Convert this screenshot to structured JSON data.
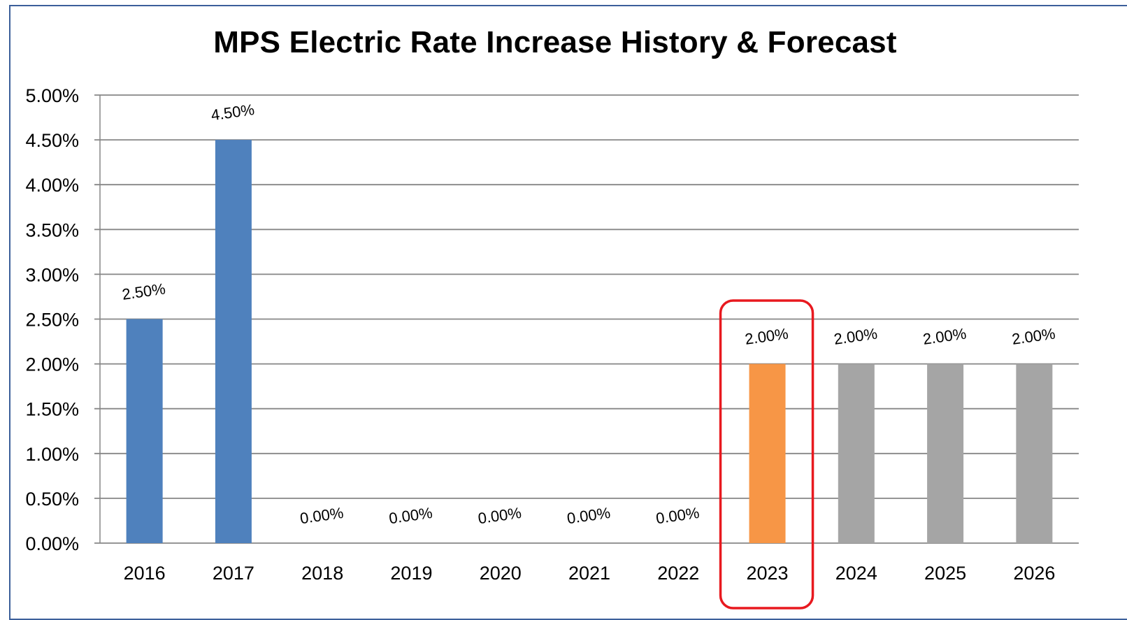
{
  "chart_data": {
    "type": "bar",
    "title": "MPS Electric Rate Increase History & Forecast",
    "categories": [
      "2016",
      "2017",
      "2018",
      "2019",
      "2020",
      "2021",
      "2022",
      "2023",
      "2024",
      "2025",
      "2026"
    ],
    "values": [
      2.5,
      4.5,
      0.0,
      0.0,
      0.0,
      0.0,
      0.0,
      2.0,
      2.0,
      2.0,
      2.0
    ],
    "data_labels": [
      "2.50%",
      "4.50%",
      "0.00%",
      "0.00%",
      "0.00%",
      "0.00%",
      "0.00%",
      "2.00%",
      "2.00%",
      "2.00%",
      "2.00%"
    ],
    "bar_colors": [
      "#4f81bd",
      "#4f81bd",
      "#4f81bd",
      "#4f81bd",
      "#4f81bd",
      "#4f81bd",
      "#4f81bd",
      "#f79646",
      "#a5a5a5",
      "#a5a5a5",
      "#a5a5a5"
    ],
    "ylim": [
      0,
      5
    ],
    "y_ticks": [
      0,
      0.5,
      1,
      1.5,
      2,
      2.5,
      3,
      3.5,
      4,
      4.5,
      5
    ],
    "y_tick_labels": [
      "0.00%",
      "0.50%",
      "1.00%",
      "1.50%",
      "2.00%",
      "2.50%",
      "3.00%",
      "3.50%",
      "4.00%",
      "4.50%",
      "5.00%"
    ],
    "grid": true,
    "legend": "none",
    "highlight_category": "2023",
    "highlight_color": "#e8191f",
    "gridline_color": "#868686",
    "border_color": "#3b5f9a"
  }
}
